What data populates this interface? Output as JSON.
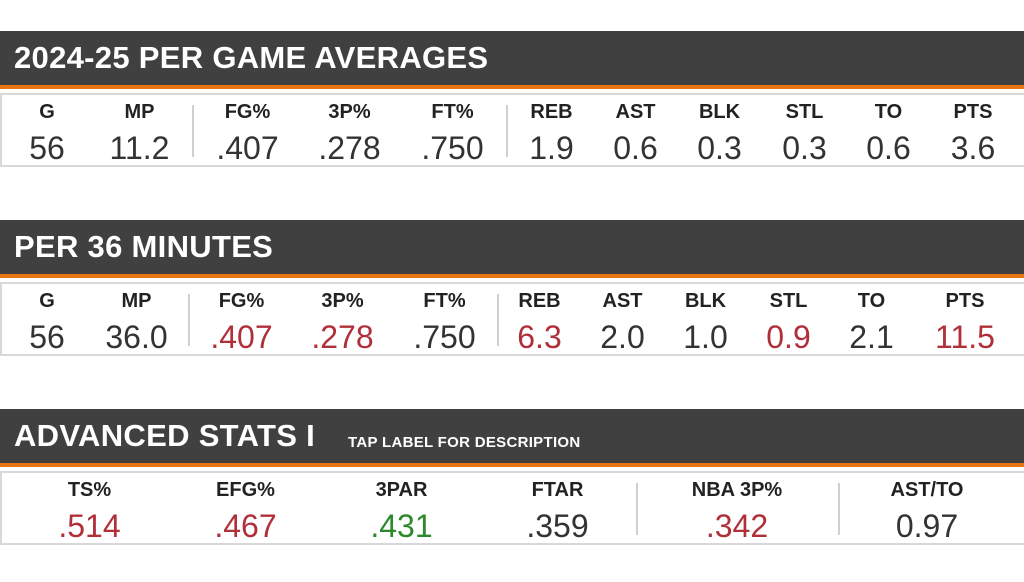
{
  "sections": [
    {
      "title": "2024-25 PER GAME AVERAGES",
      "stats": [
        {
          "label": "G",
          "value": "56"
        },
        {
          "label": "MP",
          "value": "11.2"
        },
        {
          "label": "FG%",
          "value": ".407"
        },
        {
          "label": "3P%",
          "value": ".278"
        },
        {
          "label": "FT%",
          "value": ".750"
        },
        {
          "label": "REB",
          "value": "1.9"
        },
        {
          "label": "AST",
          "value": "0.6"
        },
        {
          "label": "BLK",
          "value": "0.3"
        },
        {
          "label": "STL",
          "value": "0.3"
        },
        {
          "label": "TO",
          "value": "0.6"
        },
        {
          "label": "PTS",
          "value": "3.6"
        }
      ]
    },
    {
      "title": "PER 36 MINUTES",
      "stats": [
        {
          "label": "G",
          "value": "56"
        },
        {
          "label": "MP",
          "value": "36.0"
        },
        {
          "label": "FG%",
          "value": ".407",
          "color": "red"
        },
        {
          "label": "3P%",
          "value": ".278",
          "color": "red"
        },
        {
          "label": "FT%",
          "value": ".750"
        },
        {
          "label": "REB",
          "value": "6.3",
          "color": "red"
        },
        {
          "label": "AST",
          "value": "2.0"
        },
        {
          "label": "BLK",
          "value": "1.0"
        },
        {
          "label": "STL",
          "value": "0.9",
          "color": "red"
        },
        {
          "label": "TO",
          "value": "2.1"
        },
        {
          "label": "PTS",
          "value": "11.5",
          "color": "red"
        }
      ]
    },
    {
      "title": "ADVANCED STATS I",
      "subtitle": "TAP LABEL FOR DESCRIPTION",
      "stats": [
        {
          "label": "TS%",
          "value": ".514",
          "color": "red"
        },
        {
          "label": "EFG%",
          "value": ".467",
          "color": "red"
        },
        {
          "label": "3PAR",
          "value": ".431",
          "color": "green"
        },
        {
          "label": "FTAR",
          "value": ".359"
        },
        {
          "label": "NBA 3P%",
          "value": ".342",
          "color": "red"
        },
        {
          "label": "AST/TO",
          "value": "0.97"
        }
      ]
    }
  ],
  "colors": {
    "header_bg": "#404040",
    "accent": "#e87511",
    "negative": "#b0303a",
    "positive": "#2c8a2c"
  }
}
